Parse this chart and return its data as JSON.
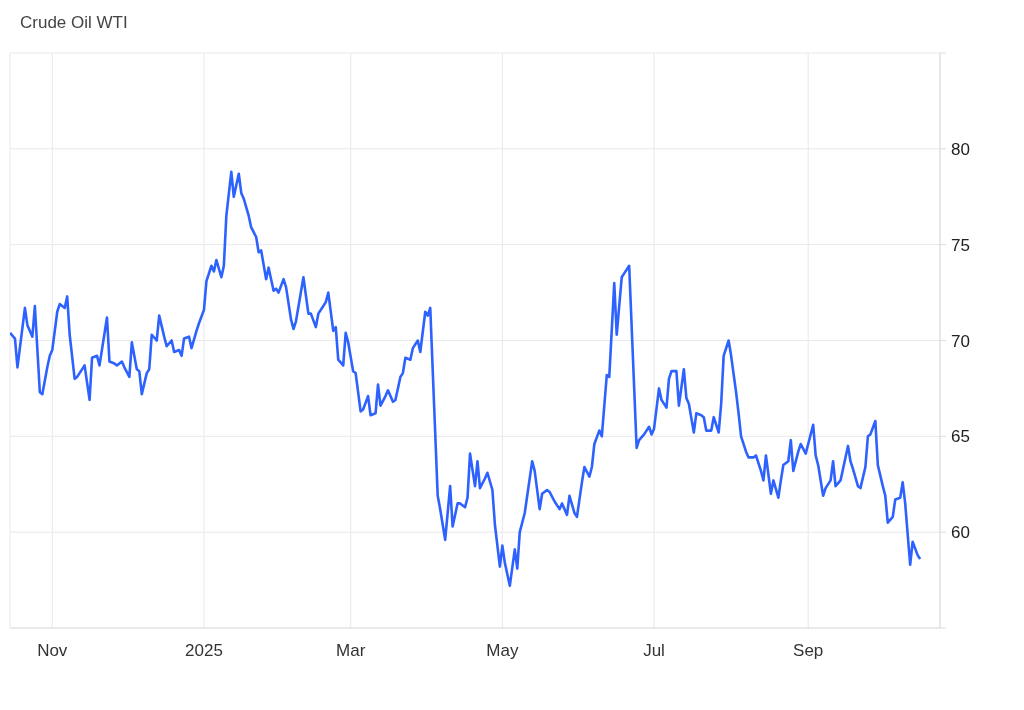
{
  "chart_data": {
    "type": "line",
    "title": "Crude Oil WTI",
    "color": "#2d62ff",
    "grid": true,
    "xlim": [
      "2024-10-15",
      "2025-10-24"
    ],
    "xticks": [
      {
        "value": "2024-11-01",
        "label": "Nov"
      },
      {
        "value": "2025-01-01",
        "label": "2025"
      },
      {
        "value": "2025-03-01",
        "label": "Mar"
      },
      {
        "value": "2025-05-01",
        "label": "May"
      },
      {
        "value": "2025-07-01",
        "label": "Jul"
      },
      {
        "value": "2025-09-01",
        "label": "Sep"
      }
    ],
    "ylim": [
      55,
      85
    ],
    "yticks": [
      {
        "value": 55,
        "label": null
      },
      60,
      65,
      70,
      75,
      80,
      {
        "value": 85,
        "label": null
      }
    ],
    "x": [
      "2024-10-15",
      "2024-10-17",
      "2024-10-18",
      "2024-10-21",
      "2024-10-22",
      "2024-10-24",
      "2024-10-25",
      "2024-10-27",
      "2024-10-28",
      "2024-10-30",
      "2024-10-31",
      "2024-11-01",
      "2024-11-03",
      "2024-11-04",
      "2024-11-06",
      "2024-11-07",
      "2024-11-08",
      "2024-11-10",
      "2024-11-11",
      "2024-11-14",
      "2024-11-16",
      "2024-11-17",
      "2024-11-19",
      "2024-11-20",
      "2024-11-23",
      "2024-11-24",
      "2024-11-26",
      "2024-11-27",
      "2024-11-29",
      "2024-11-30",
      "2024-12-02",
      "2024-12-03",
      "2024-12-05",
      "2024-12-06",
      "2024-12-07",
      "2024-12-09",
      "2024-12-10",
      "2024-12-11",
      "2024-12-13",
      "2024-12-14",
      "2024-12-16",
      "2024-12-17",
      "2024-12-19",
      "2024-12-20",
      "2024-12-22",
      "2024-12-23",
      "2024-12-24",
      "2024-12-26",
      "2024-12-27",
      "2024-12-29",
      "2024-12-30",
      "2025-01-01",
      "2025-01-02",
      "2025-01-04",
      "2025-01-05",
      "2025-01-06",
      "2025-01-08",
      "2025-01-09",
      "2025-01-10",
      "2025-01-12",
      "2025-01-13",
      "2025-01-15",
      "2025-01-16",
      "2025-01-17",
      "2025-01-19",
      "2025-01-20",
      "2025-01-22",
      "2025-01-23",
      "2025-01-24",
      "2025-01-26",
      "2025-01-27",
      "2025-01-29",
      "2025-01-30",
      "2025-01-31",
      "2025-02-02",
      "2025-02-03",
      "2025-02-05",
      "2025-02-06",
      "2025-02-07",
      "2025-02-10",
      "2025-02-12",
      "2025-02-13",
      "2025-02-15",
      "2025-02-16",
      "2025-02-18",
      "2025-02-19",
      "2025-02-20",
      "2025-02-22",
      "2025-02-23",
      "2025-02-24",
      "2025-02-26",
      "2025-02-27",
      "2025-02-28",
      "2025-03-02",
      "2025-03-03",
      "2025-03-05",
      "2025-03-06",
      "2025-03-08",
      "2025-03-09",
      "2025-03-11",
      "2025-03-12",
      "2025-03-13",
      "2025-03-15",
      "2025-03-16",
      "2025-03-18",
      "2025-03-19",
      "2025-03-21",
      "2025-03-22",
      "2025-03-23",
      "2025-03-25",
      "2025-03-26",
      "2025-03-28",
      "2025-03-29",
      "2025-03-31",
      "2025-04-01",
      "2025-04-02",
      "2025-04-05",
      "2025-04-06",
      "2025-04-08",
      "2025-04-10",
      "2025-04-11",
      "2025-04-13",
      "2025-04-14",
      "2025-04-16",
      "2025-04-17",
      "2025-04-18",
      "2025-04-20",
      "2025-04-21",
      "2025-04-22",
      "2025-04-24",
      "2025-04-25",
      "2025-04-27",
      "2025-04-28",
      "2025-04-30",
      "2025-05-01",
      "2025-05-02",
      "2025-05-04",
      "2025-05-06",
      "2025-05-07",
      "2025-05-08",
      "2025-05-10",
      "2025-05-11",
      "2025-05-13",
      "2025-05-14",
      "2025-05-16",
      "2025-05-17",
      "2025-05-19",
      "2025-05-20",
      "2025-05-22",
      "2025-05-24",
      "2025-05-25",
      "2025-05-27",
      "2025-05-28",
      "2025-05-30",
      "2025-05-31",
      "2025-06-02",
      "2025-06-03",
      "2025-06-05",
      "2025-06-06",
      "2025-06-07",
      "2025-06-09",
      "2025-06-10",
      "2025-06-12",
      "2025-06-13",
      "2025-06-15",
      "2025-06-16",
      "2025-06-18",
      "2025-06-19",
      "2025-06-21",
      "2025-06-24",
      "2025-06-25",
      "2025-06-27",
      "2025-06-29",
      "2025-06-30",
      "2025-07-01",
      "2025-07-03",
      "2025-07-04",
      "2025-07-06",
      "2025-07-07",
      "2025-07-08",
      "2025-07-10",
      "2025-07-11",
      "2025-07-13",
      "2025-07-14",
      "2025-07-15",
      "2025-07-17",
      "2025-07-18",
      "2025-07-20",
      "2025-07-21",
      "2025-07-22",
      "2025-07-24",
      "2025-07-25",
      "2025-07-27",
      "2025-07-28",
      "2025-07-29",
      "2025-07-31",
      "2025-08-01",
      "2025-08-03",
      "2025-08-04",
      "2025-08-05",
      "2025-08-07",
      "2025-08-08",
      "2025-08-10",
      "2025-08-11",
      "2025-08-13",
      "2025-08-14",
      "2025-08-15",
      "2025-08-17",
      "2025-08-18",
      "2025-08-20",
      "2025-08-21",
      "2025-08-22",
      "2025-08-24",
      "2025-08-25",
      "2025-08-26",
      "2025-08-28",
      "2025-08-29",
      "2025-08-31",
      "2025-09-01",
      "2025-09-03",
      "2025-09-04",
      "2025-09-05",
      "2025-09-07",
      "2025-09-08",
      "2025-09-10",
      "2025-09-11",
      "2025-09-12",
      "2025-09-14",
      "2025-09-15",
      "2025-09-17",
      "2025-09-18",
      "2025-09-19",
      "2025-09-21",
      "2025-09-22",
      "2025-09-24",
      "2025-09-25",
      "2025-09-26",
      "2025-09-28",
      "2025-09-29",
      "2025-10-01",
      "2025-10-02",
      "2025-10-03",
      "2025-10-05",
      "2025-10-06",
      "2025-10-08",
      "2025-10-09",
      "2025-10-10",
      "2025-10-12",
      "2025-10-13",
      "2025-10-15",
      "2025-10-16"
    ],
    "values": [
      70.4,
      70.1,
      68.6,
      71.7,
      70.8,
      70.2,
      71.8,
      67.3,
      67.2,
      68.6,
      69.2,
      69.5,
      71.5,
      71.9,
      71.7,
      72.3,
      70.3,
      68.0,
      68.1,
      68.7,
      66.9,
      69.1,
      69.2,
      68.7,
      71.2,
      68.9,
      68.8,
      68.7,
      68.9,
      68.6,
      68.1,
      69.9,
      68.5,
      68.4,
      67.2,
      68.3,
      68.5,
      70.3,
      70.0,
      71.3,
      70.2,
      69.7,
      70.0,
      69.4,
      69.5,
      69.2,
      70.1,
      70.2,
      69.6,
      70.5,
      70.9,
      71.6,
      73.1,
      73.9,
      73.6,
      74.2,
      73.3,
      73.9,
      76.5,
      78.8,
      77.5,
      78.7,
      77.7,
      77.4,
      76.5,
      75.9,
      75.4,
      74.6,
      74.7,
      73.2,
      73.8,
      72.6,
      72.7,
      72.5,
      73.2,
      72.8,
      71.1,
      70.6,
      71.0,
      73.3,
      71.4,
      71.4,
      70.7,
      71.4,
      71.8,
      72.0,
      72.5,
      70.5,
      70.7,
      69.0,
      68.7,
      70.4,
      69.9,
      68.4,
      68.3,
      66.3,
      66.4,
      67.1,
      66.1,
      66.2,
      67.7,
      66.6,
      67.1,
      67.4,
      66.8,
      66.9,
      68.1,
      68.3,
      69.1,
      69.0,
      69.6,
      70.0,
      69.4,
      71.5,
      71.3,
      71.7,
      61.9,
      61.2,
      59.6,
      62.4,
      60.3,
      61.5,
      61.5,
      61.3,
      61.8,
      64.1,
      62.4,
      63.7,
      62.3,
      62.8,
      63.1,
      62.2,
      60.4,
      58.2,
      59.3,
      58.4,
      57.2,
      59.1,
      58.1,
      60.0,
      61.0,
      61.9,
      63.7,
      63.2,
      61.2,
      62.0,
      62.2,
      62.1,
      61.6,
      61.2,
      61.5,
      60.9,
      61.9,
      61.0,
      60.8,
      62.6,
      63.4,
      62.9,
      63.4,
      64.6,
      65.3,
      65.0,
      68.2,
      68.1,
      73.0,
      70.3,
      73.3,
      73.5,
      73.9,
      64.4,
      64.8,
      65.1,
      65.5,
      65.1,
      65.4,
      67.5,
      66.9,
      66.5,
      68.0,
      68.4,
      68.4,
      66.6,
      68.5,
      67.0,
      66.7,
      65.2,
      66.2,
      66.1,
      66.0,
      65.3,
      65.3,
      66.0,
      65.2,
      66.7,
      69.2,
      70.0,
      69.2,
      67.3,
      66.2,
      65.0,
      64.2,
      63.9,
      63.9,
      64.0,
      63.2,
      62.7,
      64.0,
      62.0,
      62.7,
      61.8,
      62.7,
      63.5,
      63.7,
      64.8,
      63.2,
      64.2,
      64.6,
      64.1,
      64.6,
      65.6,
      64.0,
      63.5,
      61.9,
      62.3,
      62.7,
      63.7,
      62.4,
      62.7,
      63.3,
      64.5,
      63.7,
      63.3,
      62.4,
      62.3,
      63.4,
      65.0,
      65.1,
      65.8,
      63.5,
      62.4,
      61.9,
      60.5,
      60.8,
      61.7,
      61.8,
      62.6,
      61.5,
      58.3,
      59.5,
      58.8,
      58.6
    ]
  }
}
